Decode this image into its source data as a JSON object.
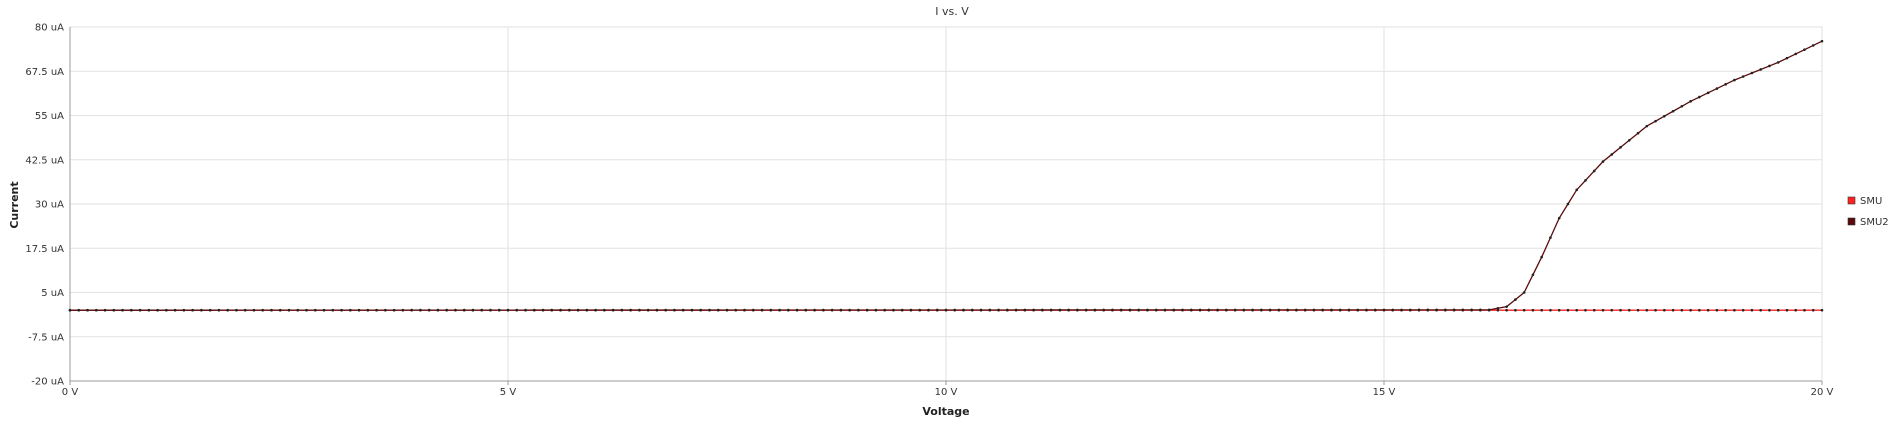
{
  "chart_data": {
    "type": "line",
    "title": "I vs. V",
    "xlabel": "Voltage",
    "ylabel": "Current",
    "xlim": [
      0,
      20
    ],
    "ylim": [
      -20,
      80
    ],
    "x_ticks": [
      0,
      5,
      10,
      15,
      20
    ],
    "x_tick_labels": [
      "0 V",
      "5 V",
      "10 V",
      "15 V",
      "20 V"
    ],
    "y_ticks": [
      -20,
      -7.5,
      5,
      17.5,
      30,
      42.5,
      55,
      67.5,
      80
    ],
    "y_tick_labels": [
      "-20 uA",
      "-7.5 uA",
      "5 uA",
      "17.5 uA",
      "30 uA",
      "42.5 uA",
      "55 uA",
      "67.5 uA",
      "80 uA"
    ],
    "grid": true,
    "legend_position": "right",
    "series": [
      {
        "name": "SMU",
        "color": "#ff2020",
        "x": [
          0,
          16.0,
          20.0
        ],
        "y": [
          0,
          0,
          0
        ]
      },
      {
        "name": "SMU2",
        "color": "#5a0a0a",
        "x": [
          0,
          16.2,
          16.4,
          16.6,
          16.8,
          17.0,
          17.2,
          17.5,
          18.0,
          18.5,
          19.0,
          19.5,
          20.0
        ],
        "y": [
          0,
          0.1,
          1,
          5,
          15,
          26,
          34,
          42,
          52,
          59,
          65,
          70,
          76
        ]
      }
    ]
  }
}
